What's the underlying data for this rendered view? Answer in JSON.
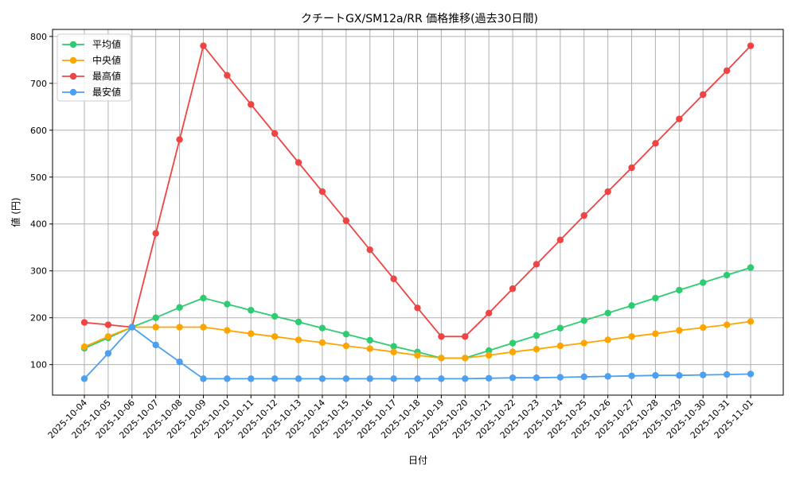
{
  "chart_data": {
    "type": "line",
    "title": "クチートGX/SM12a/RR 価格推移(過去30日間)",
    "xlabel": "日付",
    "ylabel": "値 (円)",
    "ylim": [
      35,
      815
    ],
    "yticks": [
      100,
      200,
      300,
      400,
      500,
      600,
      700,
      800
    ],
    "grid": true,
    "legend_position": "top-left",
    "categories": [
      "2025-10-04",
      "2025-10-05",
      "2025-10-06",
      "2025-10-07",
      "2025-10-08",
      "2025-10-09",
      "2025-10-10",
      "2025-10-11",
      "2025-10-12",
      "2025-10-13",
      "2025-10-14",
      "2025-10-15",
      "2025-10-16",
      "2025-10-17",
      "2025-10-18",
      "2025-10-19",
      "2025-10-20",
      "2025-10-21",
      "2025-10-22",
      "2025-10-23",
      "2025-10-24",
      "2025-10-25",
      "2025-10-26",
      "2025-10-27",
      "2025-10-28",
      "2025-10-29",
      "2025-10-30",
      "2025-10-31",
      "2025-11-01"
    ],
    "series": [
      {
        "name": "平均値",
        "color": "#2ecc71",
        "values": [
          135,
          157,
          180,
          200,
          222,
          242,
          229,
          216,
          203,
          191,
          178,
          165,
          152,
          139,
          127,
          114,
          114,
          130,
          146,
          162,
          178,
          194,
          210,
          226,
          242,
          259,
          275,
          291,
          307
        ]
      },
      {
        "name": "中央値",
        "color": "#ffa500",
        "values": [
          138,
          160,
          180,
          180,
          180,
          180,
          173,
          166,
          160,
          153,
          147,
          140,
          134,
          127,
          120,
          114,
          114,
          120,
          127,
          133,
          140,
          146,
          153,
          160,
          166,
          173,
          179,
          185,
          192
        ]
      },
      {
        "name": "最高値",
        "color": "#ef4444",
        "values": [
          190,
          185,
          180,
          380,
          580,
          780,
          717,
          655,
          593,
          531,
          469,
          407,
          345,
          283,
          221,
          160,
          160,
          210,
          262,
          314,
          366,
          418,
          469,
          520,
          572,
          624,
          676,
          727,
          780
        ]
      },
      {
        "name": "最安値",
        "color": "#4d9ff0",
        "values": [
          70,
          124,
          180,
          142,
          106,
          70,
          70,
          70,
          70,
          70,
          70,
          70,
          70,
          70,
          70,
          70,
          70,
          71,
          72,
          72,
          73,
          74,
          75,
          76,
          77,
          77,
          78,
          79,
          80
        ]
      }
    ]
  }
}
